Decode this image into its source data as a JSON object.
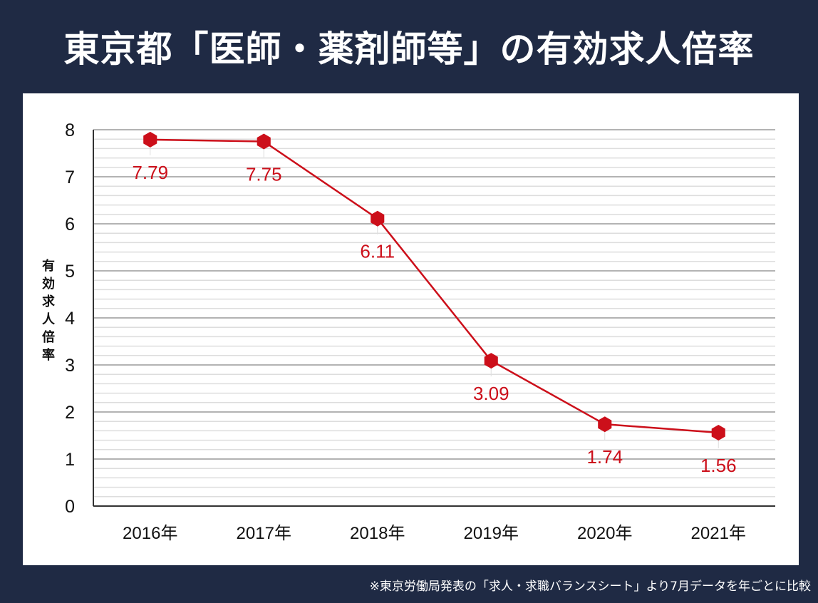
{
  "header": {
    "title": "東京都「医師・薬剤師等」の有効求人倍率"
  },
  "footnote": "※東京労働局発表の「求人・求職バランスシート」より7月データを年ごとに比較",
  "colors": {
    "background": "#1f2a44",
    "panel": "#ffffff",
    "series": "#cc0f1a",
    "major_grid": "#9a9a9a",
    "minor_grid": "#dddddd",
    "axis": "#333333"
  },
  "chart_data": {
    "type": "line",
    "title": "東京都「医師・薬剤師等」の有効求人倍率",
    "xlabel": "",
    "ylabel": "有効求人倍率",
    "categories": [
      "2016年",
      "2017年",
      "2018年",
      "2019年",
      "2020年",
      "2021年"
    ],
    "series": [
      {
        "name": "有効求人倍率",
        "values": [
          7.79,
          7.75,
          6.11,
          3.09,
          1.74,
          1.56
        ],
        "labels": [
          "7.79",
          "7.75",
          "6.11",
          "3.09",
          "1.74",
          "1.56"
        ],
        "marker": "hexagon",
        "color": "#cc0f1a"
      }
    ],
    "ylim": [
      0,
      8
    ],
    "yticks": [
      0,
      1,
      2,
      3,
      4,
      5,
      6,
      7,
      8
    ],
    "minor_step": 0.2,
    "grid": true,
    "legend": "none"
  }
}
